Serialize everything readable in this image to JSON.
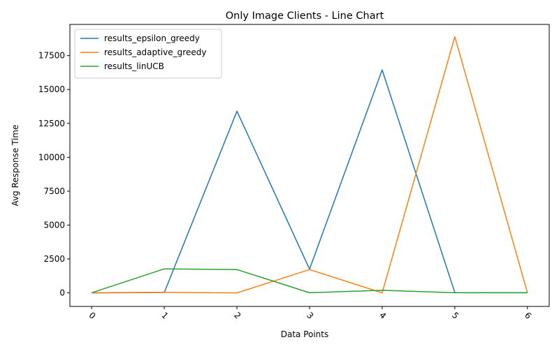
{
  "chart_data": {
    "type": "line",
    "title": "Only Image Clients - Line Chart",
    "xlabel": "Data Points",
    "ylabel": "Avg Response Time",
    "x": [
      0,
      1,
      2,
      3,
      4,
      5,
      6
    ],
    "x_tick_labels": [
      "0",
      "1",
      "2",
      "3",
      "4",
      "5",
      "6"
    ],
    "x_tick_rotation": 45,
    "xlim": [
      -0.3,
      6.3
    ],
    "ylim": [
      -1000,
      19800
    ],
    "y_ticks": [
      0,
      2500,
      5000,
      7500,
      10000,
      12500,
      15000,
      17500
    ],
    "y_tick_labels": [
      "0",
      "2500",
      "5000",
      "7500",
      "10000",
      "12500",
      "15000",
      "17500"
    ],
    "grid": false,
    "legend_position": "top-left",
    "series": [
      {
        "name": "results_epsilon_greedy",
        "color": "#1f77b4",
        "values": [
          0,
          30,
          13400,
          1750,
          16450,
          20,
          10
        ]
      },
      {
        "name": "results_adaptive_greedy",
        "color": "#ff7f0e",
        "values": [
          10,
          40,
          0,
          1720,
          0,
          18900,
          10
        ]
      },
      {
        "name": "results_linUCB",
        "color": "#2ca02c",
        "values": [
          10,
          1770,
          1720,
          10,
          190,
          10,
          10
        ]
      }
    ]
  }
}
